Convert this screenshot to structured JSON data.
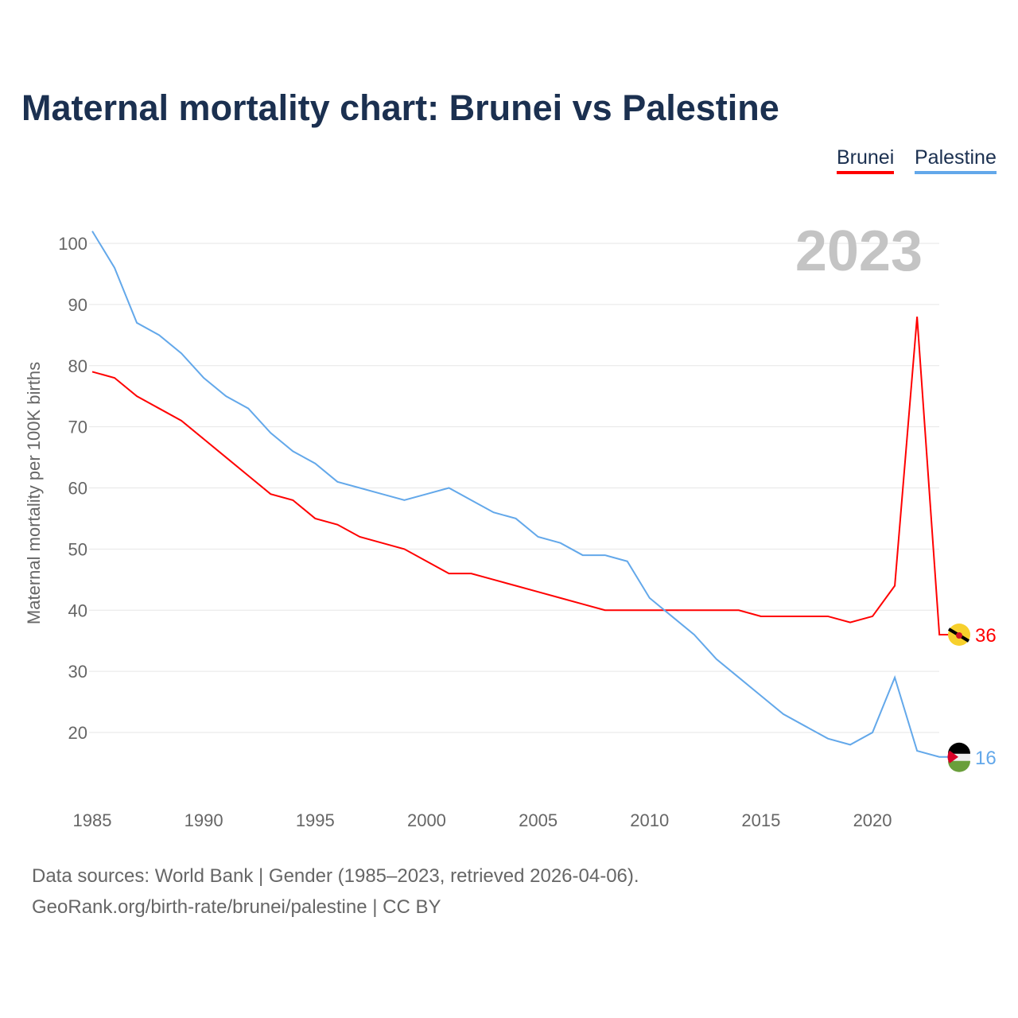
{
  "title": "Maternal mortality chart: Brunei vs Palestine",
  "legend": [
    "Brunei",
    "Palestine"
  ],
  "year_label": "2023",
  "source_line1": "Data sources: World Bank | Gender (1985–2023, retrieved 2026-04-06).",
  "source_line2": "GeoRank.org/birth-rate/brunei/palestine | CC BY",
  "chart_data": {
    "type": "line",
    "title": "Maternal mortality chart: Brunei vs Palestine",
    "xlabel": "",
    "ylabel": "Maternal mortality per 100K births",
    "xlim": [
      1985,
      2023
    ],
    "ylim": [
      10,
      102
    ],
    "x_ticks": [
      1985,
      1990,
      1995,
      2000,
      2005,
      2010,
      2015,
      2020
    ],
    "y_ticks": [
      20,
      30,
      40,
      50,
      60,
      70,
      80,
      90,
      100
    ],
    "grid": true,
    "legend_position": "top-right",
    "x": [
      1985,
      1986,
      1987,
      1988,
      1989,
      1990,
      1991,
      1992,
      1993,
      1994,
      1995,
      1996,
      1997,
      1998,
      1999,
      2000,
      2001,
      2002,
      2003,
      2004,
      2005,
      2006,
      2007,
      2008,
      2009,
      2010,
      2011,
      2012,
      2013,
      2014,
      2015,
      2016,
      2017,
      2018,
      2019,
      2020,
      2021,
      2022,
      2023
    ],
    "series": [
      {
        "name": "Brunei",
        "color": "#ff0000",
        "end_label": "36",
        "values": [
          79,
          78,
          75,
          73,
          71,
          68,
          65,
          62,
          59,
          58,
          55,
          54,
          52,
          51,
          50,
          48,
          46,
          46,
          45,
          44,
          43,
          42,
          41,
          40,
          40,
          40,
          40,
          40,
          40,
          40,
          39,
          39,
          39,
          39,
          38,
          39,
          44,
          88,
          36
        ]
      },
      {
        "name": "Palestine",
        "color": "#63a8ea",
        "end_label": "16",
        "values": [
          102,
          96,
          87,
          85,
          82,
          78,
          75,
          73,
          69,
          66,
          64,
          61,
          60,
          59,
          58,
          59,
          60,
          58,
          56,
          55,
          52,
          51,
          49,
          49,
          48,
          42,
          39,
          36,
          32,
          29,
          26,
          23,
          21,
          19,
          18,
          20,
          29,
          17,
          16
        ]
      }
    ]
  }
}
